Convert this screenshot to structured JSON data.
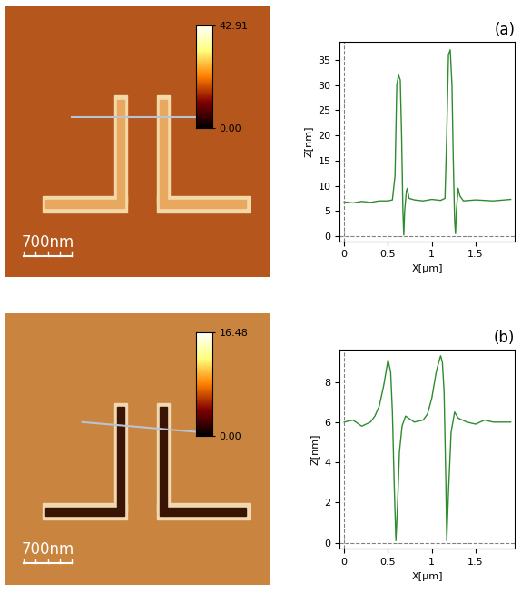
{
  "chart_data": [
    {
      "type": "line",
      "annotation": "(a)",
      "x_label": "X[μm]",
      "y_label": "Z[nm]",
      "x": [
        0,
        0.1,
        0.2,
        0.3,
        0.4,
        0.5,
        0.55,
        0.58,
        0.6,
        0.62,
        0.64,
        0.655,
        0.67,
        0.68,
        0.69,
        0.71,
        0.72,
        0.74,
        0.8,
        0.9,
        1.0,
        1.1,
        1.15,
        1.17,
        1.19,
        1.21,
        1.23,
        1.245,
        1.26,
        1.27,
        1.28,
        1.3,
        1.32,
        1.36,
        1.5,
        1.7,
        1.9
      ],
      "values": [
        6.8,
        6.6,
        6.9,
        6.7,
        7.0,
        7.0,
        7.2,
        12,
        30,
        32,
        31,
        20,
        5,
        0.2,
        5,
        9,
        9.5,
        7.5,
        7.2,
        7.0,
        7.3,
        7.1,
        7.5,
        20,
        36,
        37,
        30,
        15,
        3,
        0.5,
        5,
        9.5,
        8,
        7,
        7.2,
        7,
        7.3
      ],
      "color": "#2e8b2e",
      "xlim": [
        -0.05,
        1.95
      ],
      "ylim": [
        -1,
        38.5
      ],
      "xticks": [
        0,
        0.5,
        1,
        1.5
      ],
      "yticks": [
        0,
        5,
        10,
        15,
        20,
        25,
        30,
        35
      ]
    },
    {
      "type": "line",
      "annotation": "(b)",
      "x_label": "X[μm]",
      "y_label": "Z[nm]",
      "x": [
        0,
        0.1,
        0.2,
        0.3,
        0.35,
        0.4,
        0.45,
        0.5,
        0.53,
        0.55,
        0.57,
        0.59,
        0.61,
        0.63,
        0.66,
        0.7,
        0.8,
        0.9,
        0.95,
        1.0,
        1.05,
        1.08,
        1.1,
        1.12,
        1.14,
        1.16,
        1.17,
        1.19,
        1.22,
        1.26,
        1.3,
        1.4,
        1.5,
        1.6,
        1.7,
        1.8,
        1.9
      ],
      "values": [
        6.0,
        6.1,
        5.8,
        6.0,
        6.3,
        6.8,
        7.8,
        9.1,
        8.5,
        6.5,
        3,
        0.1,
        2,
        4.5,
        5.8,
        6.3,
        6.0,
        6.1,
        6.4,
        7.2,
        8.5,
        9.0,
        9.3,
        9.0,
        7.5,
        3,
        0.1,
        2.5,
        5.5,
        6.5,
        6.2,
        6.0,
        5.9,
        6.1,
        6.0,
        6.0,
        6.0
      ],
      "color": "#2e8b2e",
      "xlim": [
        -0.05,
        1.95
      ],
      "ylim": [
        -0.3,
        9.6
      ],
      "xticks": [
        0,
        0.5,
        1,
        1.5
      ],
      "yticks": [
        0,
        2,
        4,
        6,
        8
      ]
    }
  ],
  "images": [
    {
      "type": "image",
      "scale_bar": "700nm",
      "colorbar": {
        "range": [
          0,
          42.91
        ],
        "ticks": [
          {
            "value": 0,
            "label": "0.00"
          },
          {
            "value": 42.91,
            "label": "42.91"
          }
        ]
      }
    },
    {
      "type": "image",
      "scale_bar": "700nm",
      "colorbar": {
        "range": [
          0,
          16.48
        ],
        "ticks": [
          {
            "value": 0,
            "label": "0.00"
          },
          {
            "value": 16.48,
            "label": "16.48"
          }
        ]
      }
    }
  ]
}
